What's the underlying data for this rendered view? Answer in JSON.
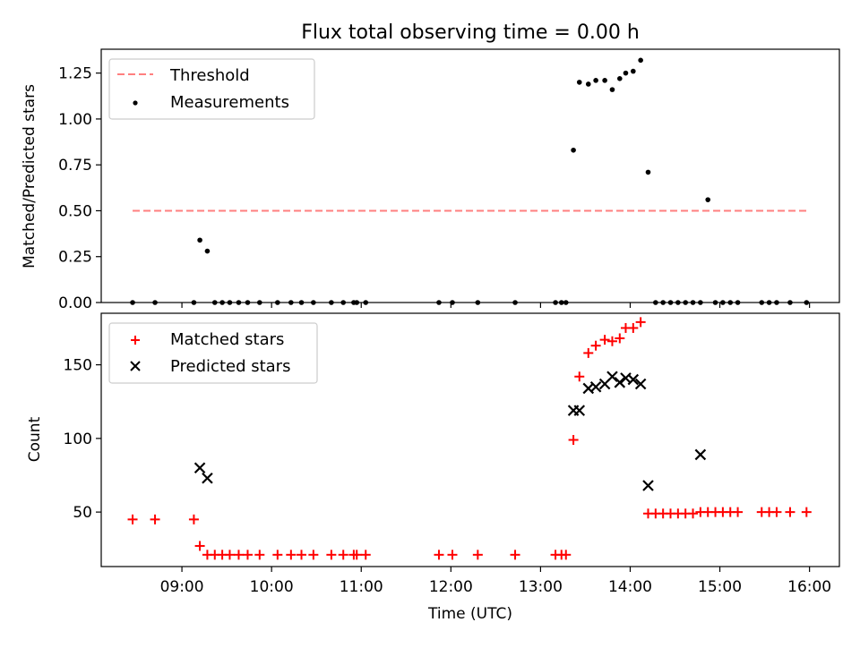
{
  "title": "Flux total observing time = 0.00 h",
  "chart_data": [
    {
      "type": "scatter",
      "ylabel": "Matched/Predicted stars",
      "ylim": [
        0,
        1.38
      ],
      "yticks": [
        0.0,
        0.25,
        0.5,
        0.75,
        1.0,
        1.25
      ],
      "ytick_labels": [
        "0.00",
        "0.25",
        "0.50",
        "0.75",
        "1.00",
        "1.25"
      ],
      "legend_position": "top-left",
      "colors": {
        "threshold": "#ff7f7f",
        "measurements": "#000000"
      },
      "series": [
        {
          "name": "Threshold",
          "kind": "dashed-line",
          "x": [
            "08:27",
            "16:00"
          ],
          "y": [
            0.5,
            0.5
          ]
        },
        {
          "name": "Measurements",
          "kind": "points",
          "x": [
            "08:27",
            "08:42",
            "09:08",
            "09:12",
            "09:17",
            "09:22",
            "09:27",
            "09:32",
            "09:38",
            "09:44",
            "09:52",
            "10:04",
            "10:13",
            "10:20",
            "10:28",
            "10:40",
            "10:48",
            "10:55",
            "10:57",
            "11:03",
            "11:52",
            "12:01",
            "12:18",
            "12:43",
            "13:10",
            "13:14",
            "13:17",
            "13:22",
            "13:26",
            "13:32",
            "13:37",
            "13:43",
            "13:48",
            "13:53",
            "13:57",
            "14:02",
            "14:07",
            "14:12",
            "14:17",
            "14:22",
            "14:27",
            "14:32",
            "14:37",
            "14:42",
            "14:47",
            "14:52",
            "14:57",
            "15:02",
            "15:07",
            "15:12",
            "15:28",
            "15:33",
            "15:38",
            "15:47",
            "15:58"
          ],
          "y": [
            0,
            0,
            0,
            0.34,
            0.28,
            0,
            0,
            0,
            0,
            0,
            0,
            0,
            0,
            0,
            0,
            0,
            0,
            0,
            0,
            0,
            0,
            0,
            0,
            0,
            0,
            0,
            0,
            0.83,
            1.2,
            1.19,
            1.21,
            1.21,
            1.16,
            1.22,
            1.25,
            1.26,
            1.32,
            0.71,
            0,
            0,
            0,
            0,
            0,
            0,
            0,
            0.56,
            0,
            0,
            0,
            0,
            0,
            0,
            0,
            0,
            0
          ]
        }
      ]
    },
    {
      "type": "scatter",
      "xlabel": "Time (UTC)",
      "ylabel": "Count",
      "ylim": [
        13,
        185
      ],
      "yticks": [
        50,
        100,
        150
      ],
      "ytick_labels": [
        "50",
        "100",
        "150"
      ],
      "xlim": [
        "08:06",
        "16:20"
      ],
      "xticks": [
        "09:00",
        "10:00",
        "11:00",
        "12:00",
        "13:00",
        "14:00",
        "15:00",
        "16:00"
      ],
      "legend_position": "top-left",
      "colors": {
        "matched": "#ff0000",
        "predicted": "#000000"
      },
      "series": [
        {
          "name": "Matched stars",
          "marker": "plus",
          "x": [
            "08:27",
            "08:42",
            "09:08",
            "09:12",
            "09:17",
            "09:22",
            "09:27",
            "09:32",
            "09:38",
            "09:44",
            "09:52",
            "10:04",
            "10:13",
            "10:20",
            "10:28",
            "10:40",
            "10:48",
            "10:55",
            "10:57",
            "11:03",
            "11:52",
            "12:01",
            "12:18",
            "12:43",
            "13:10",
            "13:14",
            "13:17",
            "13:22",
            "13:26",
            "13:32",
            "13:37",
            "13:43",
            "13:48",
            "13:53",
            "13:57",
            "14:02",
            "14:07",
            "14:12",
            "14:17",
            "14:22",
            "14:27",
            "14:32",
            "14:37",
            "14:42",
            "14:47",
            "14:52",
            "14:57",
            "15:02",
            "15:07",
            "15:12",
            "15:28",
            "15:33",
            "15:38",
            "15:47",
            "15:58"
          ],
          "y": [
            45,
            45,
            45,
            27,
            21,
            21,
            21,
            21,
            21,
            21,
            21,
            21,
            21,
            21,
            21,
            21,
            21,
            21,
            21,
            21,
            21,
            21,
            21,
            21,
            21,
            21,
            21,
            99,
            142,
            158,
            163,
            167,
            166,
            168,
            175,
            175,
            179,
            49,
            49,
            49,
            49,
            49,
            49,
            49,
            50,
            50,
            50,
            50,
            50,
            50,
            50,
            50,
            50,
            50,
            50
          ]
        },
        {
          "name": "Predicted stars",
          "marker": "x",
          "x": [
            "09:12",
            "09:17",
            "13:22",
            "13:26",
            "13:32",
            "13:37",
            "13:43",
            "13:48",
            "13:53",
            "13:57",
            "14:02",
            "14:07",
            "14:12",
            "14:47"
          ],
          "y": [
            80,
            73,
            119,
            119,
            134,
            135,
            137,
            142,
            138,
            141,
            140,
            137,
            68,
            89
          ]
        }
      ]
    }
  ],
  "legend": {
    "top": [
      "Threshold",
      "Measurements"
    ],
    "bottom": [
      "Matched stars",
      "Predicted stars"
    ]
  }
}
